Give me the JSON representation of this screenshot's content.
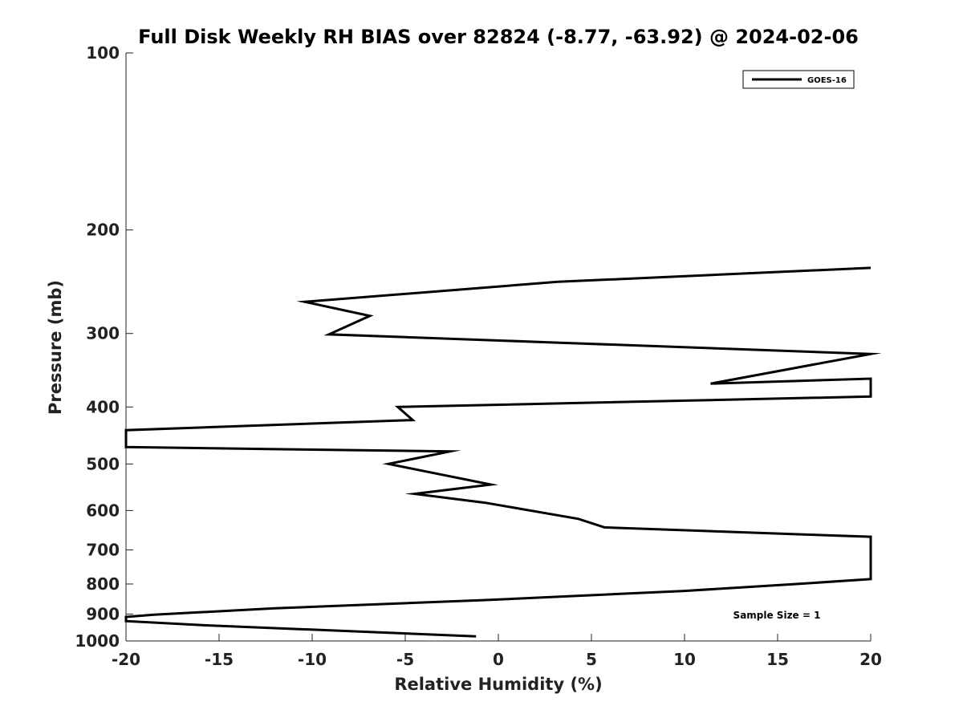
{
  "chart_data": {
    "type": "line",
    "title": "Full Disk Weekly RH BIAS over 82824 (-8.77, -63.92) @ 2024-02-06",
    "xlabel": "Relative Humidity (%)",
    "ylabel": "Pressure (mb)",
    "xlim": [
      -20,
      20
    ],
    "ylim": [
      100,
      1000
    ],
    "y_scale": "log",
    "y_inverted": true,
    "grid": false,
    "legend_position": "top-right",
    "x_ticks": [
      -20,
      -15,
      -10,
      -5,
      0,
      5,
      10,
      15,
      20
    ],
    "x_tick_labels": [
      "-20",
      "-15",
      "-10",
      "-5",
      "0",
      "5",
      "10",
      "15",
      "20"
    ],
    "y_ticks": [
      100,
      200,
      300,
      400,
      500,
      600,
      700,
      800,
      900,
      1000
    ],
    "y_tick_labels": [
      "100",
      "200",
      "300",
      "400",
      "500",
      "600",
      "700",
      "800",
      "900",
      "1000"
    ],
    "series": [
      {
        "name": "GOES-16",
        "color": "#000000",
        "points": [
          {
            "x": 20,
            "y": 232
          },
          {
            "x": 3.2,
            "y": 245
          },
          {
            "x": -10.4,
            "y": 265
          },
          {
            "x": -6.9,
            "y": 280
          },
          {
            "x": -9.1,
            "y": 301
          },
          {
            "x": 3.3,
            "y": 311
          },
          {
            "x": 20,
            "y": 325
          },
          {
            "x": 11.4,
            "y": 365
          },
          {
            "x": 20,
            "y": 358
          },
          {
            "x": 20,
            "y": 380
          },
          {
            "x": 20,
            "y": 384
          },
          {
            "x": -5.4,
            "y": 400
          },
          {
            "x": -4.6,
            "y": 421
          },
          {
            "x": -20,
            "y": 438
          },
          {
            "x": -20,
            "y": 468
          },
          {
            "x": -11.6,
            "y": 472
          },
          {
            "x": -2.6,
            "y": 476
          },
          {
            "x": -5.9,
            "y": 500
          },
          {
            "x": -0.4,
            "y": 542
          },
          {
            "x": -4.5,
            "y": 562
          },
          {
            "x": -0.7,
            "y": 582
          },
          {
            "x": 4.3,
            "y": 620
          },
          {
            "x": 5.7,
            "y": 641
          },
          {
            "x": 16.4,
            "y": 659
          },
          {
            "x": 20,
            "y": 665
          },
          {
            "x": 20,
            "y": 785
          },
          {
            "x": 16,
            "y": 800
          },
          {
            "x": 10,
            "y": 822
          },
          {
            "x": -0.7,
            "y": 852
          },
          {
            "x": -12,
            "y": 880
          },
          {
            "x": -18.5,
            "y": 902
          },
          {
            "x": -20,
            "y": 910
          },
          {
            "x": -20,
            "y": 925
          },
          {
            "x": -15.9,
            "y": 940
          },
          {
            "x": -1.2,
            "y": 982
          }
        ]
      }
    ],
    "annotations": [
      {
        "text": "Sample Size = 1"
      }
    ]
  }
}
